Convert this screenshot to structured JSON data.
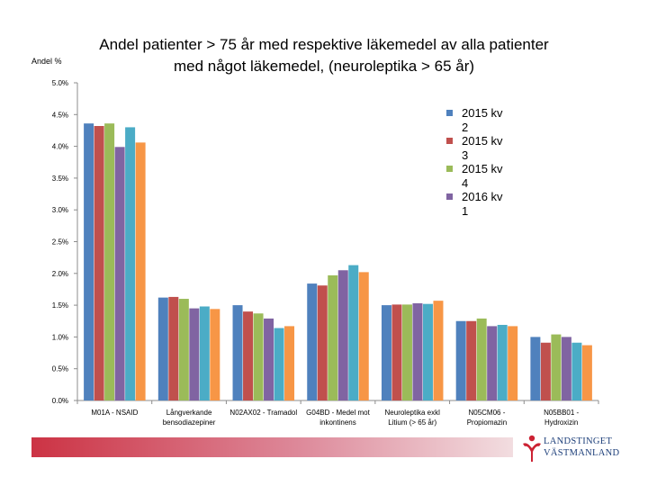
{
  "chart_data": {
    "type": "bar",
    "title_line1": "Andel patienter > 75 år med respektive läkemedel av alla patienter",
    "title_line2": "med  något läkemedel, (neuroleptika > 65 år)",
    "ylabel": "Andel %",
    "ylim": [
      0,
      5
    ],
    "yticks": [
      "0.0%",
      "0.5%",
      "1.0%",
      "1.5%",
      "2.0%",
      "2.5%",
      "3.0%",
      "3.5%",
      "4.0%",
      "4.5%",
      "5.0%"
    ],
    "categories": [
      [
        "M01A - NSAID"
      ],
      [
        "Långverkande",
        "bensodiazepiner"
      ],
      [
        "N02AX02 - Tramadol"
      ],
      [
        "G04BD - Medel mot",
        "inkontinens"
      ],
      [
        "Neuroleptika exkl",
        "Litium (> 65 år)"
      ],
      [
        "N05CM06 -",
        "Propiomazin"
      ],
      [
        "N05BB01 -",
        "Hydroxizin"
      ]
    ],
    "series": [
      {
        "name": "2015 kv 2",
        "color": "#4f81bd",
        "values": [
          4.36,
          1.62,
          1.5,
          1.84,
          1.5,
          1.25,
          1.0
        ]
      },
      {
        "name": "2015 kv 3",
        "color": "#c0504d",
        "values": [
          4.32,
          1.63,
          1.4,
          1.81,
          1.51,
          1.25,
          0.91
        ]
      },
      {
        "name": "2015 kv 4",
        "color": "#9bbb59",
        "values": [
          4.36,
          1.6,
          1.37,
          1.97,
          1.51,
          1.29,
          1.04
        ]
      },
      {
        "name": "2016 kv 1",
        "color": "#8064a2",
        "values": [
          3.99,
          1.45,
          1.29,
          2.05,
          1.53,
          1.17,
          1.0
        ]
      },
      {
        "name": "",
        "color": "#4bacc6",
        "values": [
          4.3,
          1.48,
          1.14,
          2.13,
          1.52,
          1.19,
          0.91
        ]
      },
      {
        "name": "",
        "color": "#f79646",
        "values": [
          4.06,
          1.44,
          1.17,
          2.02,
          1.57,
          1.17,
          0.87
        ]
      }
    ]
  },
  "logo": {
    "line1": "LANDSTINGET",
    "line2": "VÄSTMANLAND",
    "accent": "#cc2233",
    "text_color": "#1d3f7a"
  }
}
